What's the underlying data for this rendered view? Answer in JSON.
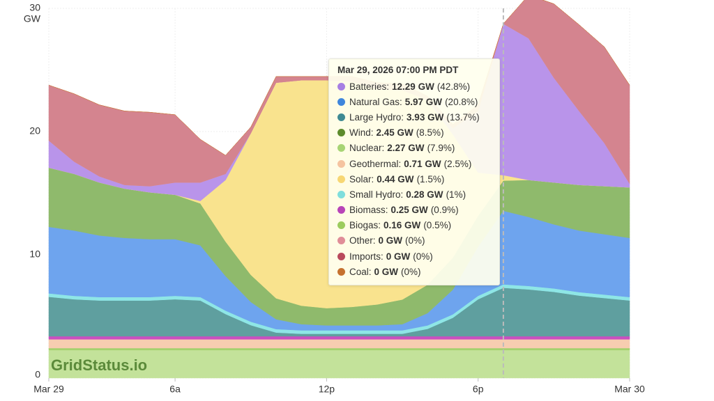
{
  "chart_data": {
    "type": "stacked_area",
    "x": [
      1,
      2,
      3,
      4,
      5,
      6,
      7,
      8,
      9,
      10,
      11,
      12,
      13,
      14,
      15,
      16,
      17,
      18,
      19,
      20,
      21,
      22,
      23,
      24
    ],
    "xlim": [
      1,
      24
    ],
    "xticks": [
      {
        "value": 1,
        "label": "Mar 29"
      },
      {
        "value": 6,
        "label": "6a"
      },
      {
        "value": 12,
        "label": "12p"
      },
      {
        "value": 18,
        "label": "6p"
      },
      {
        "value": 24,
        "label": "Mar 30"
      }
    ],
    "ylim": [
      0,
      30
    ],
    "yticks": [
      0,
      10,
      20,
      30
    ],
    "y_unit": "GW",
    "grid": true,
    "watermark": "GridStatus.io",
    "series": [
      {
        "name": "Nuclear",
        "color": "#c3e29a",
        "values": [
          2.27,
          2.27,
          2.27,
          2.27,
          2.27,
          2.27,
          2.27,
          2.27,
          2.27,
          2.27,
          2.27,
          2.27,
          2.27,
          2.27,
          2.27,
          2.27,
          2.27,
          2.27,
          2.27,
          2.27,
          2.27,
          2.27,
          2.27,
          2.27
        ]
      },
      {
        "name": "Biogas",
        "color": "#a5d16e",
        "values": [
          0.16,
          0.16,
          0.16,
          0.16,
          0.16,
          0.16,
          0.16,
          0.16,
          0.16,
          0.16,
          0.16,
          0.16,
          0.16,
          0.16,
          0.16,
          0.16,
          0.16,
          0.16,
          0.16,
          0.16,
          0.16,
          0.16,
          0.16,
          0.16
        ]
      },
      {
        "name": "Geothermal",
        "color": "#f7cdb0",
        "values": [
          0.71,
          0.71,
          0.71,
          0.71,
          0.71,
          0.71,
          0.71,
          0.71,
          0.71,
          0.71,
          0.71,
          0.71,
          0.71,
          0.71,
          0.71,
          0.71,
          0.71,
          0.71,
          0.71,
          0.71,
          0.71,
          0.71,
          0.71,
          0.71
        ]
      },
      {
        "name": "Biomass",
        "color": "#c94fc0",
        "values": [
          0.25,
          0.25,
          0.25,
          0.25,
          0.25,
          0.25,
          0.25,
          0.25,
          0.25,
          0.25,
          0.25,
          0.25,
          0.25,
          0.25,
          0.25,
          0.25,
          0.25,
          0.25,
          0.25,
          0.25,
          0.25,
          0.25,
          0.25,
          0.25
        ]
      },
      {
        "name": "Large Hydro",
        "color": "#5f9f9f",
        "values": [
          3.2,
          3.0,
          2.9,
          2.9,
          2.9,
          3.0,
          2.9,
          1.8,
          0.9,
          0.3,
          0.2,
          0.2,
          0.2,
          0.2,
          0.2,
          0.6,
          1.5,
          3.0,
          3.93,
          3.8,
          3.6,
          3.3,
          3.1,
          2.9
        ]
      },
      {
        "name": "Small Hydro",
        "color": "#8ee6e6",
        "values": [
          0.28,
          0.28,
          0.28,
          0.28,
          0.28,
          0.28,
          0.28,
          0.28,
          0.28,
          0.28,
          0.28,
          0.28,
          0.28,
          0.28,
          0.28,
          0.28,
          0.28,
          0.28,
          0.28,
          0.28,
          0.28,
          0.28,
          0.28,
          0.28
        ]
      },
      {
        "name": "Natural Gas",
        "color": "#6ea4ee",
        "values": [
          5.4,
          5.3,
          5.0,
          4.8,
          4.7,
          4.6,
          4.2,
          2.8,
          1.6,
          0.8,
          0.5,
          0.4,
          0.4,
          0.4,
          0.5,
          1.0,
          2.0,
          4.0,
          5.97,
          5.6,
          5.2,
          5.0,
          4.9,
          4.8
        ]
      },
      {
        "name": "Wind",
        "color": "#8fba6c",
        "values": [
          4.8,
          4.6,
          4.3,
          4.0,
          3.8,
          3.6,
          3.4,
          2.8,
          2.2,
          1.7,
          1.5,
          1.4,
          1.5,
          1.7,
          2.0,
          2.3,
          2.6,
          2.5,
          2.45,
          3.0,
          3.4,
          3.7,
          3.9,
          4.1
        ]
      },
      {
        "name": "Solar",
        "color": "#f9e38e",
        "values": [
          0,
          0,
          0,
          0,
          0,
          0,
          0.2,
          5.0,
          11.5,
          17.5,
          18.3,
          18.5,
          18.3,
          17.5,
          17.0,
          15.0,
          10.0,
          3.5,
          0.44,
          0,
          0,
          0,
          0,
          0
        ]
      },
      {
        "name": "Batteries",
        "color": "#b994ea",
        "values": [
          2.2,
          1.0,
          0.5,
          0.3,
          0.5,
          1.0,
          1.5,
          0.5,
          0,
          0,
          0,
          0,
          0,
          0,
          0,
          0,
          0.5,
          5.0,
          12.29,
          11.5,
          8.5,
          6.0,
          3.5,
          0.3
        ]
      },
      {
        "name": "Other",
        "color": "#e3a0a8",
        "values": [
          0,
          0,
          0,
          0,
          0,
          0,
          0,
          0,
          0,
          0,
          0,
          0,
          0,
          0,
          0,
          0,
          0,
          0,
          0,
          0,
          0,
          0,
          0,
          0
        ]
      },
      {
        "name": "Imports",
        "color": "#d4848f",
        "values": [
          4.5,
          5.5,
          5.8,
          6.0,
          6.0,
          5.5,
          3.5,
          1.5,
          0.5,
          0.5,
          0.3,
          0.3,
          0.4,
          0.5,
          0.5,
          0.3,
          0.3,
          0.5,
          0,
          3.5,
          6.0,
          7.0,
          7.8,
          8.0
        ]
      },
      {
        "name": "Coal",
        "color": "#c8783a",
        "values": [
          0,
          0,
          0,
          0,
          0,
          0,
          0,
          0,
          0,
          0,
          0,
          0,
          0,
          0,
          0,
          0,
          0,
          0,
          0,
          0,
          0,
          0,
          0,
          0
        ]
      }
    ],
    "cursor_x": 19,
    "tooltip": {
      "title": "Mar 29, 2026 07:00 PM PDT",
      "items": [
        {
          "label": "Batteries:",
          "value": "12.29 GW",
          "share": "(42.8%)",
          "color": "#a77fe3"
        },
        {
          "label": "Natural Gas:",
          "value": "5.97 GW",
          "share": "(20.8%)",
          "color": "#3f86dc"
        },
        {
          "label": "Large Hydro:",
          "value": "3.93 GW",
          "share": "(13.7%)",
          "color": "#3f8a93"
        },
        {
          "label": "Wind:",
          "value": "2.45 GW",
          "share": "(8.5%)",
          "color": "#5d8b2c"
        },
        {
          "label": "Nuclear:",
          "value": "2.27 GW",
          "share": "(7.9%)",
          "color": "#a7d474"
        },
        {
          "label": "Geothermal:",
          "value": "0.71 GW",
          "share": "(2.5%)",
          "color": "#f5c4a0"
        },
        {
          "label": "Solar:",
          "value": "0.44 GW",
          "share": "(1.5%)",
          "color": "#f7d774"
        },
        {
          "label": "Small Hydro:",
          "value": "0.28 GW",
          "share": "(1%)",
          "color": "#7fdedc"
        },
        {
          "label": "Biomass:",
          "value": "0.25 GW",
          "share": "(0.9%)",
          "color": "#b844b8"
        },
        {
          "label": "Biogas:",
          "value": "0.16 GW",
          "share": "(0.5%)",
          "color": "#9ccc5e"
        },
        {
          "label": "Other:",
          "value": "0 GW",
          "share": "(0%)",
          "color": "#e08d98"
        },
        {
          "label": "Imports:",
          "value": "0 GW",
          "share": "(0%)",
          "color": "#b94a5c"
        },
        {
          "label": "Coal:",
          "value": "0 GW",
          "share": "(0%)",
          "color": "#c6712e"
        }
      ]
    }
  }
}
